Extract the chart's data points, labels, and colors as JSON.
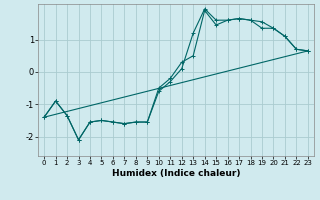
{
  "xlabel": "Humidex (Indice chaleur)",
  "bg_color": "#d0eaee",
  "line_color": "#006666",
  "grid_color": "#aaccd0",
  "xlim": [
    -0.5,
    23.5
  ],
  "ylim": [
    -2.6,
    2.1
  ],
  "yticks": [
    -2,
    -1,
    0,
    1
  ],
  "xticks": [
    0,
    1,
    2,
    3,
    4,
    5,
    6,
    7,
    8,
    9,
    10,
    11,
    12,
    13,
    14,
    15,
    16,
    17,
    18,
    19,
    20,
    21,
    22,
    23
  ],
  "curve1_x": [
    0,
    1,
    2,
    3,
    4,
    5,
    6,
    7,
    8,
    9,
    10,
    11,
    12,
    13,
    14,
    15,
    16,
    17,
    18,
    19,
    20,
    21,
    22,
    23
  ],
  "curve1_y": [
    -1.4,
    -0.9,
    -1.35,
    -2.1,
    -1.55,
    -1.5,
    -1.55,
    -1.6,
    -1.55,
    -1.55,
    -0.6,
    -0.3,
    0.1,
    1.2,
    1.95,
    1.6,
    1.6,
    1.65,
    1.6,
    1.55,
    1.35,
    1.1,
    0.7,
    0.65
  ],
  "curve2_x": [
    0,
    1,
    2,
    3,
    4,
    5,
    6,
    7,
    8,
    9,
    10,
    11,
    12,
    13,
    14,
    15,
    16,
    17,
    18,
    19,
    20,
    21,
    22,
    23
  ],
  "curve2_y": [
    -1.4,
    -0.9,
    -1.35,
    -2.1,
    -1.55,
    -1.5,
    -1.55,
    -1.6,
    -1.55,
    -1.55,
    -0.5,
    -0.2,
    0.3,
    0.5,
    1.9,
    1.45,
    1.6,
    1.65,
    1.6,
    1.35,
    1.35,
    1.1,
    0.7,
    0.65
  ],
  "line_x": [
    0,
    23
  ],
  "line_y": [
    -1.4,
    0.65
  ],
  "figsize": [
    3.2,
    2.0
  ],
  "dpi": 100
}
